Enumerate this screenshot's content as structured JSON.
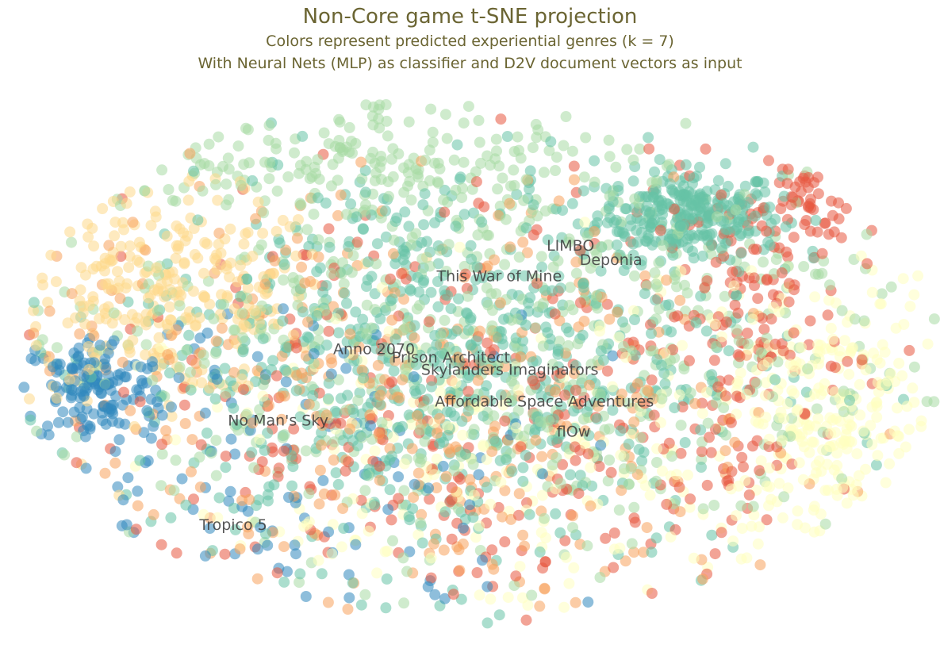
{
  "header": {
    "title": "Non-Core game t-SNE projection",
    "subtitle_1": "Colors represent predicted experiential genres (k = 7)",
    "subtitle_2": "With Neural Nets (MLP) as classifier and D2V document vectors as input"
  },
  "chart_data": {
    "type": "scatter",
    "title": "Non-Core game t-SNE projection",
    "subtitle": "Colors represent predicted experiential genres (k = 7)",
    "xlabel": "",
    "ylabel": "",
    "axes_visible": false,
    "grid": false,
    "legend": "none",
    "xlim": [
      0,
      100
    ],
    "ylim": [
      0,
      100
    ],
    "colors": [
      "#e8573f",
      "#f7a35c",
      "#fdd98b",
      "#ffffbf",
      "#a7dba4",
      "#66c2a5",
      "#3288bd"
    ],
    "clusters": [
      {
        "genre": 5,
        "cx": 73,
        "cy": 78,
        "sx": 5,
        "sy": 4,
        "n": 260
      },
      {
        "genre": 2,
        "cx": 16,
        "cy": 63,
        "sx": 9,
        "sy": 9,
        "n": 280
      },
      {
        "genre": 6,
        "cx": 8,
        "cy": 46,
        "sx": 4,
        "sy": 5,
        "n": 140
      },
      {
        "genre": 3,
        "cx": 88,
        "cy": 40,
        "sx": 6,
        "sy": 13,
        "n": 240
      },
      {
        "genre": 0,
        "cx": 80,
        "cy": 60,
        "sx": 5,
        "sy": 12,
        "n": 120
      },
      {
        "genre": 0,
        "cx": 87,
        "cy": 82,
        "sx": 3,
        "sy": 5,
        "n": 50
      },
      {
        "genre": 5,
        "cx": 46,
        "cy": 52,
        "sx": 17,
        "sy": 19,
        "n": 700
      },
      {
        "genre": 4,
        "cx": 50,
        "cy": 58,
        "sx": 24,
        "sy": 22,
        "n": 640
      },
      {
        "genre": 1,
        "cx": 42,
        "cy": 42,
        "sx": 22,
        "sy": 22,
        "n": 360
      },
      {
        "genre": 0,
        "cx": 50,
        "cy": 38,
        "sx": 24,
        "sy": 22,
        "n": 300
      },
      {
        "genre": 3,
        "cx": 58,
        "cy": 30,
        "sx": 20,
        "sy": 17,
        "n": 220
      },
      {
        "genre": 6,
        "cx": 30,
        "cy": 30,
        "sx": 14,
        "sy": 16,
        "n": 110
      },
      {
        "genre": 4,
        "cx": 38,
        "cy": 88,
        "sx": 14,
        "sy": 5,
        "n": 140
      }
    ],
    "annotations": [
      {
        "label": "LIMBO",
        "x": 57.5,
        "y": 71.4
      },
      {
        "label": "Deponia",
        "x": 61.1,
        "y": 68.8
      },
      {
        "label": "This War of Mine",
        "x": 45.5,
        "y": 65.8
      },
      {
        "label": "Anno 2070",
        "x": 34.2,
        "y": 52.5
      },
      {
        "label": "Prison Architect",
        "x": 40.6,
        "y": 51.0
      },
      {
        "label": "Skylanders Imaginators",
        "x": 43.8,
        "y": 48.8
      },
      {
        "label": "Affordable Space Adventures",
        "x": 45.3,
        "y": 43.0
      },
      {
        "label": "No Man's Sky",
        "x": 22.7,
        "y": 39.5
      },
      {
        "label": "flOw",
        "x": 58.6,
        "y": 37.5
      },
      {
        "label": "Tropico 5",
        "x": 19.6,
        "y": 20.5
      }
    ]
  }
}
